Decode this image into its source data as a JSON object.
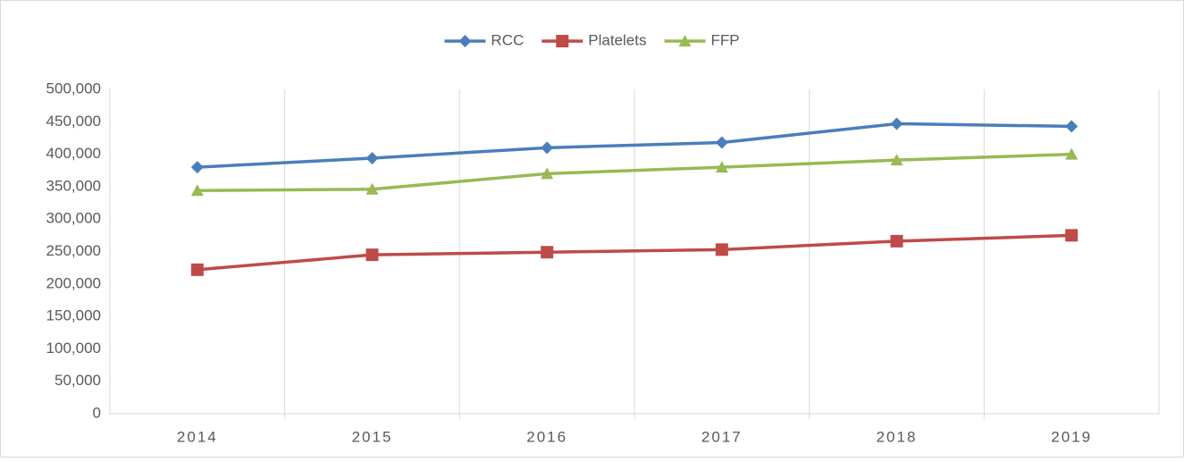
{
  "chart_data": {
    "type": "line",
    "categories": [
      "2014",
      "2015",
      "2016",
      "2017",
      "2018",
      "2019"
    ],
    "series": [
      {
        "name": "RCC",
        "color": "#4a7ebb",
        "marker": "diamond",
        "values": [
          380000,
          394000,
          410000,
          418000,
          447000,
          443000
        ]
      },
      {
        "name": "Platelets",
        "color": "#be4b48",
        "marker": "square",
        "values": [
          222000,
          245000,
          249000,
          253000,
          266000,
          275000
        ]
      },
      {
        "name": "FFP",
        "color": "#98b954",
        "marker": "triangle",
        "values": [
          344000,
          346000,
          370000,
          380000,
          391000,
          400000
        ]
      }
    ],
    "ylim": [
      0,
      500000
    ],
    "yticks": [
      0,
      {
        "value": 50000,
        "label": "50,000"
      },
      {
        "value": 100000,
        "label": "100,000"
      },
      {
        "value": 150000,
        "label": "150,000"
      },
      {
        "value": 200000,
        "label": "200,000"
      },
      {
        "value": 250000,
        "label": "250,000"
      },
      {
        "value": 300000,
        "label": "300,000"
      },
      {
        "value": 350000,
        "label": "350,000"
      },
      {
        "value": 400000,
        "label": "400,000"
      },
      {
        "value": 450000,
        "label": "450,000"
      },
      {
        "value": 500000,
        "label": "500,000"
      }
    ],
    "grid": false,
    "legend": "top"
  }
}
